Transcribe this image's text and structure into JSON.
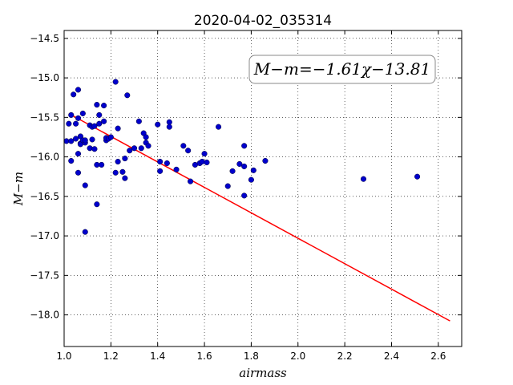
{
  "chart_data": {
    "type": "scatter",
    "title": "2020-04-02_035314",
    "xlabel": "airmass",
    "ylabel": "M−m",
    "xlim": [
      1.0,
      2.7
    ],
    "ylim": [
      -18.4,
      -14.4
    ],
    "xticks": [
      "1.0",
      "1.2",
      "1.4",
      "1.6",
      "1.8",
      "2.0",
      "2.2",
      "2.4",
      "2.6"
    ],
    "yticks": [
      "−14.5",
      "−15.0",
      "−15.5",
      "−16.0",
      "−16.5",
      "−17.0",
      "−17.5",
      "−18.0"
    ],
    "grid": true,
    "annotation": "M−m=−1.61χ−13.81",
    "annotation_position": "top-right",
    "fit": {
      "slope": -1.61,
      "intercept": -13.81,
      "x_range": [
        1.02,
        2.65
      ],
      "color": "#ff0000"
    },
    "point_color": "#0000cc",
    "points": [
      [
        1.01,
        -15.8
      ],
      [
        1.02,
        -15.58
      ],
      [
        1.03,
        -15.8
      ],
      [
        1.03,
        -16.05
      ],
      [
        1.03,
        -15.47
      ],
      [
        1.04,
        -15.21
      ],
      [
        1.05,
        -15.77
      ],
      [
        1.05,
        -15.58
      ],
      [
        1.06,
        -15.51
      ],
      [
        1.06,
        -15.15
      ],
      [
        1.06,
        -15.96
      ],
      [
        1.06,
        -16.2
      ],
      [
        1.07,
        -15.83
      ],
      [
        1.07,
        -15.84
      ],
      [
        1.07,
        -15.74
      ],
      [
        1.08,
        -15.45
      ],
      [
        1.08,
        -15.79
      ],
      [
        1.09,
        -15.82
      ],
      [
        1.09,
        -15.79
      ],
      [
        1.09,
        -16.36
      ],
      [
        1.09,
        -16.95
      ],
      [
        1.11,
        -15.89
      ],
      [
        1.11,
        -15.6
      ],
      [
        1.12,
        -15.62
      ],
      [
        1.12,
        -15.78
      ],
      [
        1.13,
        -15.9
      ],
      [
        1.13,
        -15.61
      ],
      [
        1.14,
        -15.34
      ],
      [
        1.14,
        -16.1
      ],
      [
        1.14,
        -16.6
      ],
      [
        1.15,
        -15.47
      ],
      [
        1.15,
        -15.58
      ],
      [
        1.16,
        -16.1
      ],
      [
        1.17,
        -15.35
      ],
      [
        1.17,
        -15.55
      ],
      [
        1.18,
        -15.79
      ],
      [
        1.18,
        -15.76
      ],
      [
        1.19,
        -15.77
      ],
      [
        1.2,
        -15.75
      ],
      [
        1.22,
        -15.05
      ],
      [
        1.22,
        -16.2
      ],
      [
        1.23,
        -15.64
      ],
      [
        1.23,
        -16.06
      ],
      [
        1.25,
        -16.19
      ],
      [
        1.26,
        -16.27
      ],
      [
        1.26,
        -16.02
      ],
      [
        1.27,
        -15.22
      ],
      [
        1.28,
        -15.92
      ],
      [
        1.3,
        -15.89
      ],
      [
        1.32,
        -15.55
      ],
      [
        1.33,
        -15.89
      ],
      [
        1.34,
        -15.7
      ],
      [
        1.35,
        -15.75
      ],
      [
        1.35,
        -15.82
      ],
      [
        1.36,
        -15.86
      ],
      [
        1.4,
        -15.59
      ],
      [
        1.41,
        -16.06
      ],
      [
        1.41,
        -16.18
      ],
      [
        1.44,
        -16.08
      ],
      [
        1.45,
        -15.56
      ],
      [
        1.45,
        -15.62
      ],
      [
        1.48,
        -16.16
      ],
      [
        1.51,
        -15.86
      ],
      [
        1.53,
        -15.92
      ],
      [
        1.54,
        -16.31
      ],
      [
        1.56,
        -16.1
      ],
      [
        1.58,
        -16.08
      ],
      [
        1.59,
        -16.06
      ],
      [
        1.6,
        -15.96
      ],
      [
        1.61,
        -16.07
      ],
      [
        1.66,
        -15.62
      ],
      [
        1.7,
        -16.37
      ],
      [
        1.72,
        -16.18
      ],
      [
        1.75,
        -16.09
      ],
      [
        1.77,
        -15.86
      ],
      [
        1.77,
        -16.12
      ],
      [
        1.77,
        -16.49
      ],
      [
        1.8,
        -16.29
      ],
      [
        1.81,
        -16.17
      ],
      [
        1.86,
        -16.05
      ],
      [
        2.28,
        -16.28
      ],
      [
        2.51,
        -16.25
      ]
    ]
  }
}
